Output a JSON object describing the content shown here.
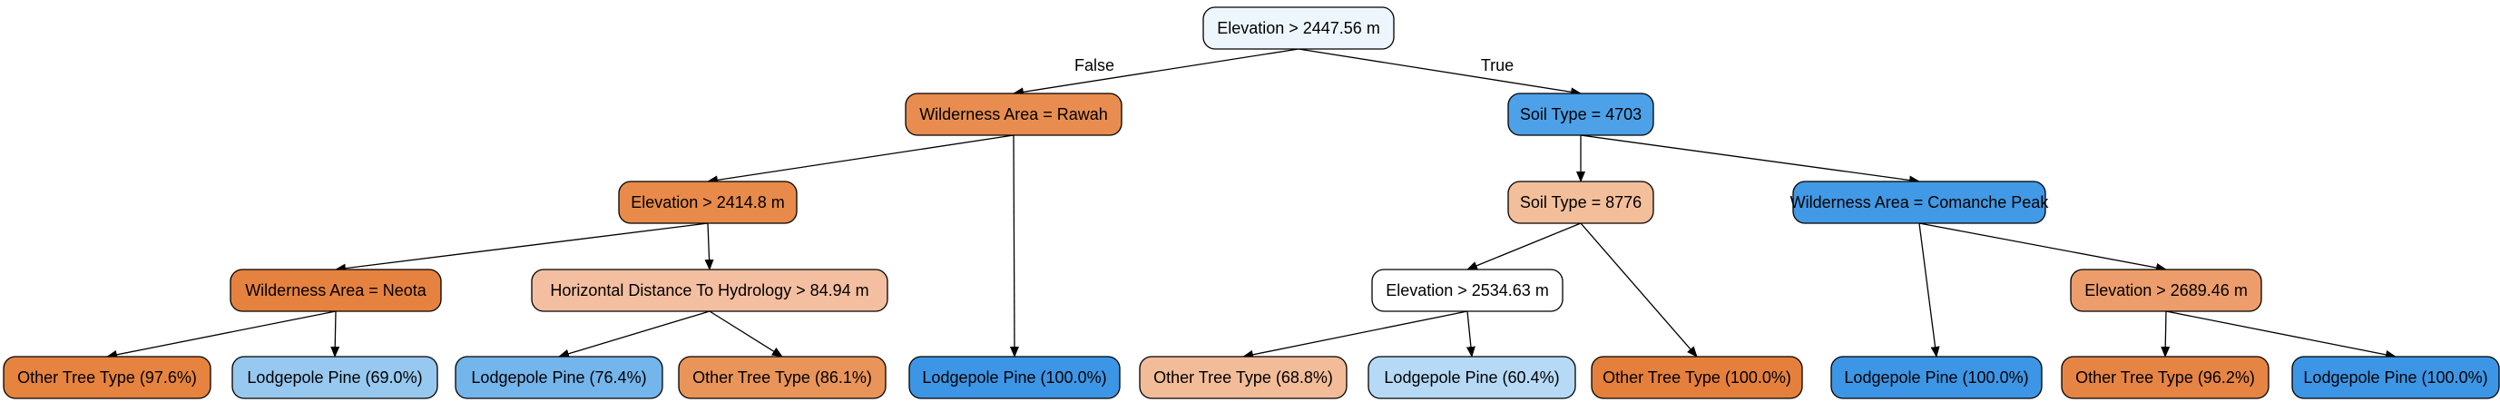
{
  "tree": {
    "edge_labels": {
      "false": "False",
      "true": "True"
    },
    "nodes": [
      {
        "id": "root",
        "label": "Elevation > 2447.56 m",
        "color": "#eef6fd"
      },
      {
        "id": "n1",
        "label": "Wilderness Area = Rawah",
        "color": "#e88d4f"
      },
      {
        "id": "n2",
        "label": "Soil Type = 4703",
        "color": "#4da1e8"
      },
      {
        "id": "n3",
        "label": "Elevation > 2414.8 m",
        "color": "#e88a4a"
      },
      {
        "id": "n4",
        "label": "Lodgepole Pine (100.0%)",
        "color": "#3d96e5"
      },
      {
        "id": "n5",
        "label": "Soil Type = 8776",
        "color": "#f3be9a"
      },
      {
        "id": "n6",
        "label": "Wilderness Area = Comanche Peak",
        "color": "#4299e5"
      },
      {
        "id": "n7",
        "label": "Wilderness Area = Neota",
        "color": "#e6823f"
      },
      {
        "id": "n8",
        "label": "Horizontal Distance To Hydrology > 84.94 m",
        "color": "#f4bfa0"
      },
      {
        "id": "n9",
        "label": "Elevation > 2534.63 m",
        "color": "#ffffff"
      },
      {
        "id": "n10",
        "label": "Other Tree Type (100.0%)",
        "color": "#e57f3c"
      },
      {
        "id": "n11",
        "label": "Lodgepole Pine (100.0%)",
        "color": "#3d96e5"
      },
      {
        "id": "n12",
        "label": "Elevation > 2689.46 m",
        "color": "#ec9d6b"
      },
      {
        "id": "l1",
        "label": "Other Tree Type (97.6%)",
        "color": "#e6833f"
      },
      {
        "id": "l2",
        "label": "Lodgepole Pine (69.0%)",
        "color": "#97c8f0"
      },
      {
        "id": "l3",
        "label": "Lodgepole Pine (76.4%)",
        "color": "#74b5ec"
      },
      {
        "id": "l4",
        "label": "Other Tree Type (86.1%)",
        "color": "#e99459"
      },
      {
        "id": "l5",
        "label": "Other Tree Type (68.8%)",
        "color": "#f3bc98"
      },
      {
        "id": "l6",
        "label": "Lodgepole Pine (60.4%)",
        "color": "#b6daf5"
      },
      {
        "id": "l7",
        "label": "Other Tree Type (96.2%)",
        "color": "#e68444"
      },
      {
        "id": "l8",
        "label": "Lodgepole Pine (100.0%)",
        "color": "#3d96e5"
      }
    ],
    "edges": [
      {
        "from": "root",
        "to": "n1",
        "branch": "false"
      },
      {
        "from": "root",
        "to": "n2",
        "branch": "true"
      },
      {
        "from": "n1",
        "to": "n3"
      },
      {
        "from": "n1",
        "to": "n4"
      },
      {
        "from": "n2",
        "to": "n5"
      },
      {
        "from": "n2",
        "to": "n6"
      },
      {
        "from": "n3",
        "to": "n7"
      },
      {
        "from": "n3",
        "to": "n8"
      },
      {
        "from": "n5",
        "to": "n9"
      },
      {
        "from": "n5",
        "to": "n10"
      },
      {
        "from": "n6",
        "to": "n11"
      },
      {
        "from": "n6",
        "to": "n12"
      },
      {
        "from": "n7",
        "to": "l1"
      },
      {
        "from": "n7",
        "to": "l2"
      },
      {
        "from": "n8",
        "to": "l3"
      },
      {
        "from": "n8",
        "to": "l4"
      },
      {
        "from": "n9",
        "to": "l5"
      },
      {
        "from": "n9",
        "to": "l6"
      },
      {
        "from": "n12",
        "to": "l7"
      },
      {
        "from": "n12",
        "to": "l8"
      }
    ]
  }
}
